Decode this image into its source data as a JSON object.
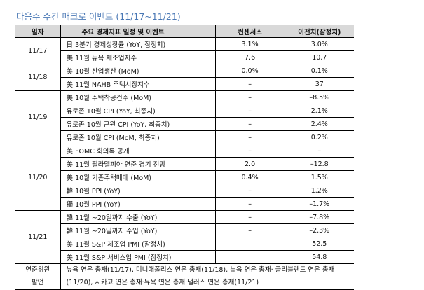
{
  "title": "다음주 주간 매크로 이벤트 (11/17~11/21)",
  "headers": {
    "date": "일자",
    "event": "주요 경제지표 일정 및 이벤트",
    "consensus": "컨센서스",
    "previous": "이전치(잠정치)"
  },
  "groups": [
    {
      "date": "11/17",
      "rows": [
        {
          "event": "日 3분기 경제성장률 (YoY, 잠정치)",
          "consensus": "3.1%",
          "previous": "3.0%"
        },
        {
          "event": "美 11월 뉴욕 제조업지수",
          "consensus": "7.6",
          "previous": "10.7"
        }
      ]
    },
    {
      "date": "11/18",
      "rows": [
        {
          "event": "美 10월 산업생산 (MoM)",
          "consensus": "0.0%",
          "previous": "0.1%"
        },
        {
          "event": "美 11월 NAHB 주택시장지수",
          "consensus": "–",
          "previous": "37"
        }
      ]
    },
    {
      "date": "11/19",
      "rows": [
        {
          "event": "美 10월 주택착공건수 (MoM)",
          "consensus": "–",
          "previous": "–8.5%"
        },
        {
          "event": "유로존 10월 CPI (YoY, 최종치)",
          "consensus": "–",
          "previous": "2.1%"
        },
        {
          "event": "유로존 10월 근원 CPI (YoY, 최종치)",
          "consensus": "–",
          "previous": "2.4%"
        },
        {
          "event": "유로존 10월 CPI (MoM, 최종치)",
          "consensus": "–",
          "previous": "0.2%"
        }
      ]
    },
    {
      "date": "11/20",
      "rows": [
        {
          "event": "美 FOMC 회의록 공개",
          "consensus": "–",
          "previous": "–"
        },
        {
          "event": "美 11월 필라델피아 연준 경기 전망",
          "consensus": "2.0",
          "previous": "–12.8"
        },
        {
          "event": "美 10월 기존주택매매 (MoM)",
          "consensus": "0.4%",
          "previous": "1.5%"
        },
        {
          "event": "韓 10월 PPI (YoY)",
          "consensus": "–",
          "previous": "1.2%"
        },
        {
          "event": "獨 10월 PPI (YoY)",
          "consensus": "–",
          "previous": "–1.7%"
        }
      ]
    },
    {
      "date": "11/21",
      "rows": [
        {
          "event": "韓 11월 ~20일까지 수출 (YoY)",
          "consensus": "–",
          "previous": "–7.8%"
        },
        {
          "event": "韓 11월 ~20일까지 수입 (YoY)",
          "consensus": "–",
          "previous": "–2.3%"
        },
        {
          "event": "美 11월 S&P 제조업 PMI (잠정치)",
          "consensus": "",
          "previous": "52.5"
        },
        {
          "event": "美 11월 S&P 서비스업 PMI (잠정치)",
          "consensus": "",
          "previous": "54.8"
        }
      ]
    }
  ],
  "footer": {
    "label_line1": "연준위원",
    "label_line2": "발언",
    "text": "뉴욕 연은 총재(11/17), 미니애폴리스 연은 총재(11/18), 뉴욕 연은 총재· 클리블랜드 연은 총재(11/20), 시카고 연은 총재·뉴욕 연은 총재·댈러스 연은 총재(11/21)"
  }
}
